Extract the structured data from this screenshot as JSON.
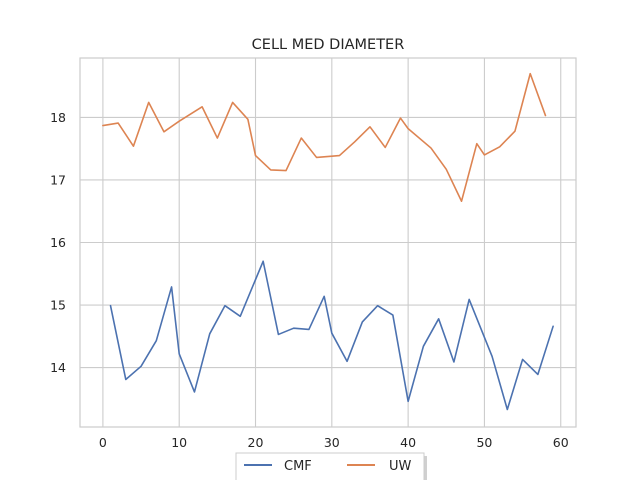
{
  "chart_data": {
    "type": "line",
    "title": "CELL MED DIAMETER",
    "xlabel": "",
    "ylabel": "",
    "xlim": [
      -3,
      62
    ],
    "ylim": [
      13.05,
      18.95
    ],
    "x_ticks": [
      0,
      10,
      20,
      30,
      40,
      50,
      60
    ],
    "y_ticks": [
      14,
      15,
      16,
      17,
      18
    ],
    "grid": true,
    "legend_position": "bottom-center",
    "series": [
      {
        "name": "CMF",
        "color": "#4c72b0",
        "x": [
          1,
          3,
          5,
          7,
          9,
          10,
          12,
          14,
          16,
          18,
          21,
          23,
          25,
          27,
          29,
          30,
          32,
          34,
          36,
          38,
          40,
          42,
          44,
          46,
          48,
          51,
          53,
          55,
          57,
          59
        ],
        "y": [
          14.99,
          13.81,
          14.02,
          14.43,
          15.29,
          14.22,
          13.61,
          14.54,
          14.99,
          14.82,
          15.7,
          14.53,
          14.63,
          14.61,
          15.14,
          14.55,
          14.1,
          14.73,
          14.99,
          14.84,
          13.46,
          14.34,
          14.78,
          14.09,
          15.09,
          14.18,
          13.33,
          14.13,
          13.89,
          14.66
        ]
      },
      {
        "name": "UW",
        "color": "#dd8452",
        "x": [
          0,
          2,
          4,
          6,
          8,
          10,
          13,
          15,
          17,
          19,
          20,
          22,
          24,
          26,
          28,
          31,
          33,
          35,
          37,
          39,
          40,
          43,
          45,
          47,
          49,
          50,
          52,
          54,
          56,
          58
        ],
        "y": [
          17.87,
          17.91,
          17.54,
          18.24,
          17.77,
          17.94,
          18.17,
          17.67,
          18.24,
          17.97,
          17.39,
          17.16,
          17.15,
          17.67,
          17.36,
          17.39,
          17.61,
          17.85,
          17.52,
          17.99,
          17.82,
          17.51,
          17.17,
          16.66,
          17.58,
          17.4,
          17.53,
          17.78,
          18.7,
          18.03
        ]
      }
    ]
  }
}
